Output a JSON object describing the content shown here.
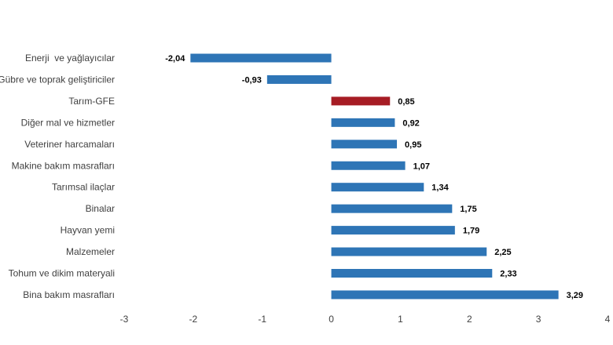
{
  "chart_data": {
    "type": "bar",
    "orientation": "horizontal",
    "categories": [
      "Enerji  ve yağlayıcılar",
      "Gübre ve toprak geliştiriciler",
      "Tarım-GFE",
      "Diğer mal ve hizmetler",
      "Veteriner harcamaları",
      "Makine bakım masrafları",
      "Tarımsal ilaçlar",
      "Binalar",
      "Hayvan yemi",
      "Malzemeler",
      "Tohum ve dikim materyali",
      "Bina bakım masrafları"
    ],
    "values": [
      -2.04,
      -0.93,
      0.85,
      0.92,
      0.95,
      1.07,
      1.34,
      1.75,
      1.79,
      2.25,
      2.33,
      3.29
    ],
    "value_labels": [
      "-2,04",
      "-0,93",
      "0,85",
      "0,92",
      "0,95",
      "1,07",
      "1,34",
      "1,75",
      "1,79",
      "2,25",
      "2,33",
      "3,29"
    ],
    "highlight": "Tarım-GFE",
    "colors": {
      "default": "#2E75B6",
      "highlight": "#A61C24"
    },
    "xlim": [
      -3,
      4
    ],
    "xticks": [
      "-3",
      "-2",
      "-1",
      "0",
      "1",
      "2",
      "3",
      "4"
    ],
    "xticks_values": [
      -3,
      -2,
      -1,
      0,
      1,
      2,
      3,
      4
    ],
    "grid": false,
    "legend": "none",
    "title": "",
    "xlabel": "",
    "ylabel": ""
  }
}
